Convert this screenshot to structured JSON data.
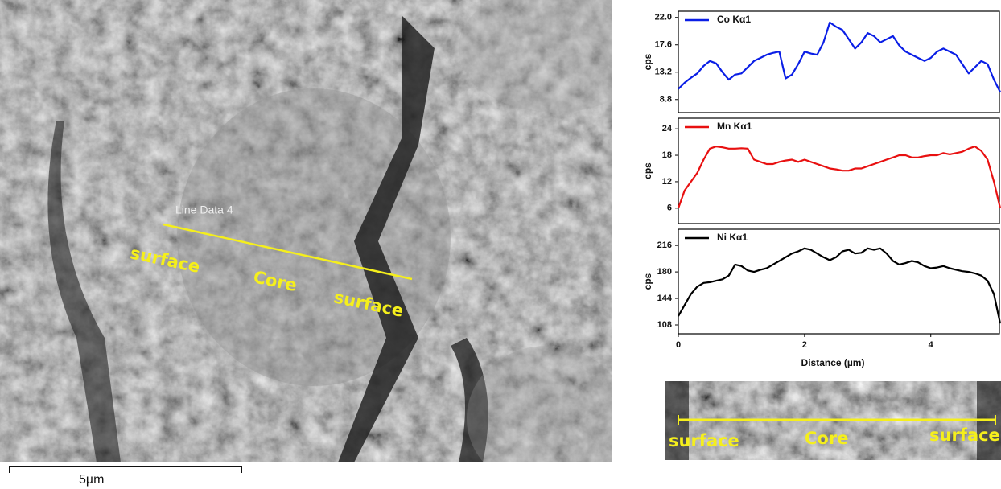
{
  "chart_data": [
    {
      "type": "line",
      "ylabel": "cps",
      "x": [
        0,
        0.1,
        0.2,
        0.3,
        0.4,
        0.5,
        0.6,
        0.7,
        0.8,
        0.9,
        1,
        1.1,
        1.2,
        1.3,
        1.4,
        1.5,
        1.6,
        1.7,
        1.8,
        1.9,
        2,
        2.1,
        2.2,
        2.3,
        2.4,
        2.5,
        2.6,
        2.7,
        2.8,
        2.9,
        3,
        3.1,
        3.2,
        3.3,
        3.4,
        3.5,
        3.6,
        3.7,
        3.8,
        3.9,
        4,
        4.1,
        4.2,
        4.3,
        4.4,
        4.5,
        4.6,
        4.7,
        4.8,
        4.9,
        5,
        5.1
      ],
      "series": [
        {
          "name": "Co Kα1",
          "color": "#0a1ee6",
          "values": [
            10.5,
            11.5,
            12.3,
            13,
            14.2,
            15,
            14.6,
            13.2,
            12,
            12.8,
            13,
            14,
            15,
            15.5,
            16,
            16.3,
            16.5,
            12.2,
            12.8,
            14.5,
            16.5,
            16.2,
            16,
            18,
            21.2,
            20.5,
            20,
            18.5,
            17,
            18,
            19.5,
            19,
            18,
            18.5,
            19,
            17.5,
            16.5,
            16,
            15.5,
            15,
            15.5,
            16.5,
            17,
            16.5,
            16,
            14.5,
            13,
            14,
            15,
            14.5,
            12,
            10
          ]
        }
      ],
      "xlim": [
        0,
        5.1
      ],
      "ylim": [
        6.7,
        23.0
      ],
      "yticks": [
        8.8,
        13.2,
        17.6,
        {
          "value": 22,
          "label": "22.0"
        }
      ]
    },
    {
      "type": "line",
      "ylabel": "cps",
      "x": [
        0,
        0.1,
        0.2,
        0.3,
        0.4,
        0.5,
        0.6,
        0.7,
        0.8,
        0.9,
        1,
        1.1,
        1.2,
        1.3,
        1.4,
        1.5,
        1.6,
        1.7,
        1.8,
        1.9,
        2,
        2.1,
        2.2,
        2.3,
        2.4,
        2.5,
        2.6,
        2.7,
        2.8,
        2.9,
        3,
        3.1,
        3.2,
        3.3,
        3.4,
        3.5,
        3.6,
        3.7,
        3.8,
        3.9,
        4,
        4.1,
        4.2,
        4.3,
        4.4,
        4.5,
        4.6,
        4.7,
        4.8,
        4.9,
        5,
        5.1
      ],
      "series": [
        {
          "name": "Mn Kα1",
          "color": "#e81010",
          "values": [
            6,
            10,
            12,
            14,
            17,
            19.5,
            20,
            19.8,
            19.5,
            19.5,
            19.6,
            19.5,
            17,
            16.5,
            16,
            16,
            16.5,
            16.8,
            17,
            16.5,
            17,
            16.5,
            16,
            15.5,
            15,
            14.8,
            14.5,
            14.5,
            15,
            15,
            15.5,
            16,
            16.5,
            17,
            17.5,
            18,
            18,
            17.5,
            17.5,
            17.8,
            18,
            18,
            18.5,
            18.2,
            18.5,
            18.8,
            19.5,
            20,
            19,
            17,
            12,
            6
          ]
        }
      ],
      "xlim": [
        0,
        5.1
      ],
      "ylim": [
        2.5,
        26.4
      ],
      "yticks": [
        6,
        12,
        18,
        24
      ]
    },
    {
      "type": "line",
      "ylabel": "cps",
      "xlabel": "Distance (µm)",
      "x": [
        0,
        0.1,
        0.2,
        0.3,
        0.4,
        0.5,
        0.6,
        0.7,
        0.8,
        0.9,
        1,
        1.1,
        1.2,
        1.3,
        1.4,
        1.5,
        1.6,
        1.7,
        1.8,
        1.9,
        2,
        2.1,
        2.2,
        2.3,
        2.4,
        2.5,
        2.6,
        2.7,
        2.8,
        2.9,
        3,
        3.1,
        3.2,
        3.3,
        3.4,
        3.5,
        3.6,
        3.7,
        3.8,
        3.9,
        4,
        4.1,
        4.2,
        4.3,
        4.4,
        4.5,
        4.6,
        4.7,
        4.8,
        4.9,
        5,
        5.1
      ],
      "series": [
        {
          "name": "Ni Kα1",
          "color": "#000000",
          "values": [
            120,
            135,
            150,
            160,
            165,
            166,
            168,
            170,
            175,
            190,
            188,
            182,
            180,
            183,
            185,
            190,
            195,
            200,
            205,
            208,
            212,
            210,
            205,
            200,
            196,
            200,
            208,
            210,
            205,
            206,
            212,
            210,
            212,
            205,
            195,
            190,
            192,
            195,
            193,
            188,
            185,
            186,
            188,
            185,
            183,
            181,
            180,
            178,
            175,
            168,
            150,
            110
          ]
        }
      ],
      "xlim": [
        0,
        5.1
      ],
      "ylim": [
        96,
        238
      ],
      "xticks": [
        0,
        2,
        4
      ],
      "yticks": [
        108,
        144,
        180,
        216
      ]
    }
  ],
  "sem_image": {
    "line_label": "Line Data 4",
    "labels": [
      "surface",
      "Core",
      "surface"
    ],
    "scale_bar": "5µm"
  },
  "line_scan_strip": {
    "labels": [
      "surface",
      "Core",
      "surface"
    ]
  }
}
